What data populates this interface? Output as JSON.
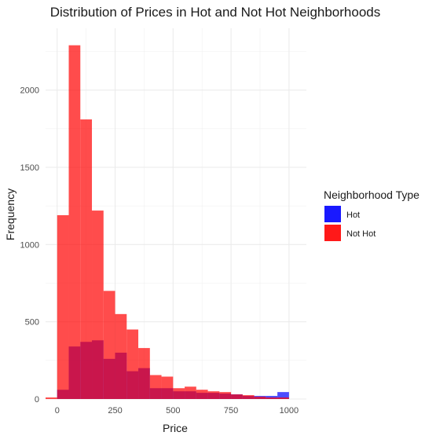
{
  "chart_data": {
    "type": "bar",
    "title": "Distribution of Prices in Hot and Not Hot Neighborhoods",
    "xlabel": "Price",
    "ylabel": "Frequency",
    "xlim": [
      -50,
      1075
    ],
    "ylim": [
      0,
      2400
    ],
    "x_ticks": [
      0,
      250,
      500,
      750,
      1000
    ],
    "y_ticks": [
      0,
      500,
      1000,
      1500,
      2000
    ],
    "bin_width": 50,
    "grid": true,
    "legend": {
      "title": "Neighborhood Type",
      "position": "right"
    },
    "bins": [
      -25,
      25,
      75,
      125,
      175,
      225,
      275,
      325,
      375,
      425,
      475,
      525,
      575,
      625,
      675,
      725,
      775,
      825,
      875,
      925,
      975
    ],
    "series": [
      {
        "name": "Hot",
        "color": "#0000ff",
        "values": [
          0,
          60,
          340,
          370,
          380,
          260,
          300,
          180,
          200,
          70,
          70,
          50,
          50,
          40,
          40,
          35,
          30,
          20,
          20,
          20,
          45
        ]
      },
      {
        "name": "Not Hot",
        "color": "#ff0000",
        "values": [
          10,
          1190,
          2290,
          1810,
          1220,
          700,
          550,
          450,
          330,
          155,
          145,
          70,
          80,
          60,
          50,
          45,
          30,
          25,
          15,
          10,
          10
        ]
      }
    ]
  }
}
